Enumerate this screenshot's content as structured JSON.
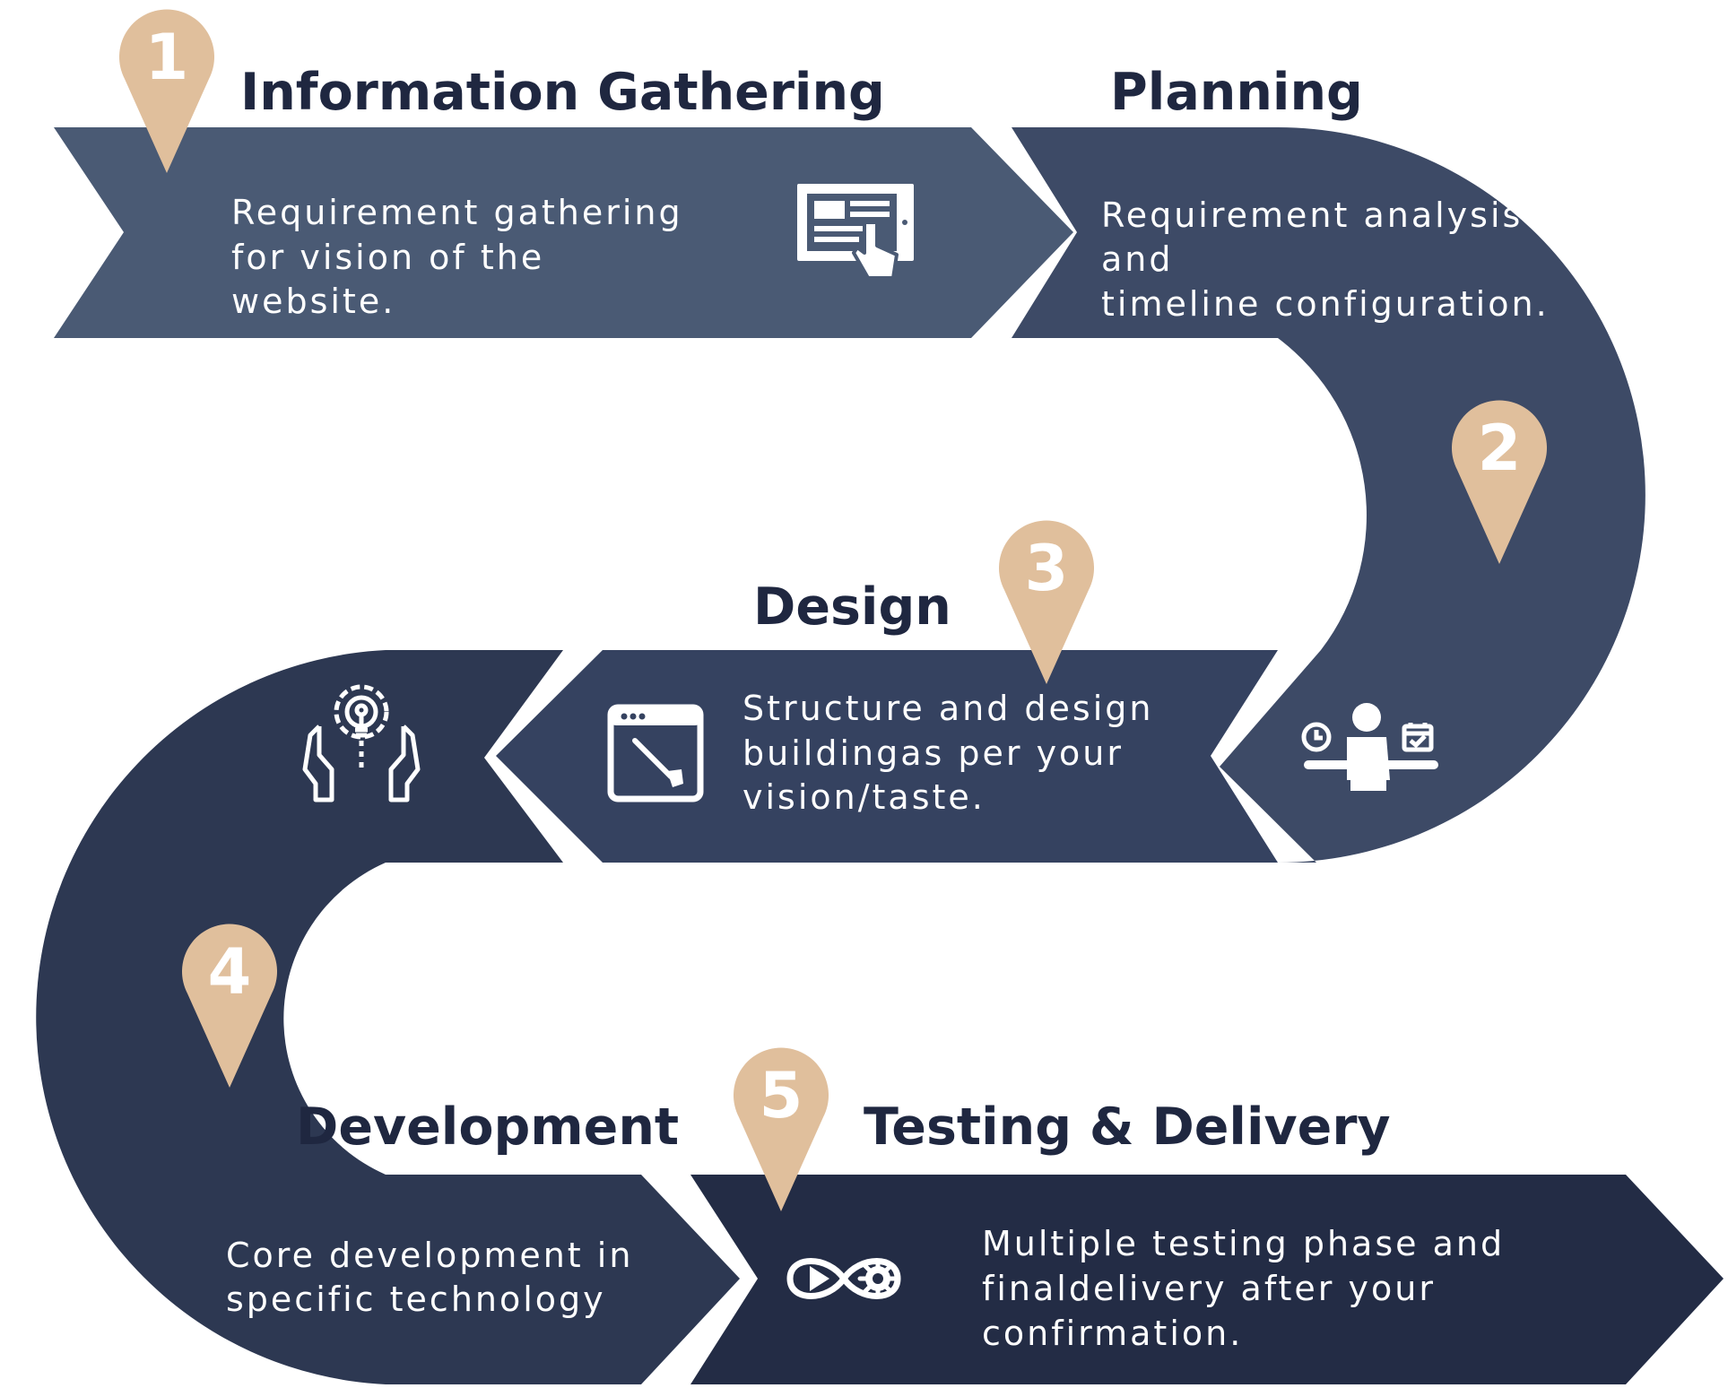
{
  "colors": {
    "band1": "#4a5a74",
    "band2": "#3d4a66",
    "band3": "#354260",
    "band4": "#2d3852",
    "band5": "#232c45",
    "pin": "#e0bf9c",
    "title": "#1f2740",
    "text": "#ffffff"
  },
  "steps": [
    {
      "number": "1",
      "title": "Information Gathering",
      "description": [
        "Requirement gathering",
        "for vision of the",
        "website."
      ],
      "icon": "tablet-touch-icon"
    },
    {
      "number": "2",
      "title": "Planning",
      "description": [
        "Requirement analysis",
        "and",
        "timeline configuration."
      ],
      "icon": "person-schedule-icon"
    },
    {
      "number": "3",
      "title": "Design",
      "description": [
        "Structure and design",
        "buildingas per your",
        "vision/taste."
      ],
      "icon": "design-window-brush-icon"
    },
    {
      "number": "4",
      "title": "Development",
      "description": [
        "Core development in",
        "specific technology"
      ],
      "icon": "hands-lightbulb-gear-icon"
    },
    {
      "number": "5",
      "title": "Testing & Delivery",
      "description": [
        "Multiple testing phase and",
        "finaldelivery after your",
        "confirmation."
      ],
      "icon": "infinity-play-gear-icon"
    }
  ]
}
